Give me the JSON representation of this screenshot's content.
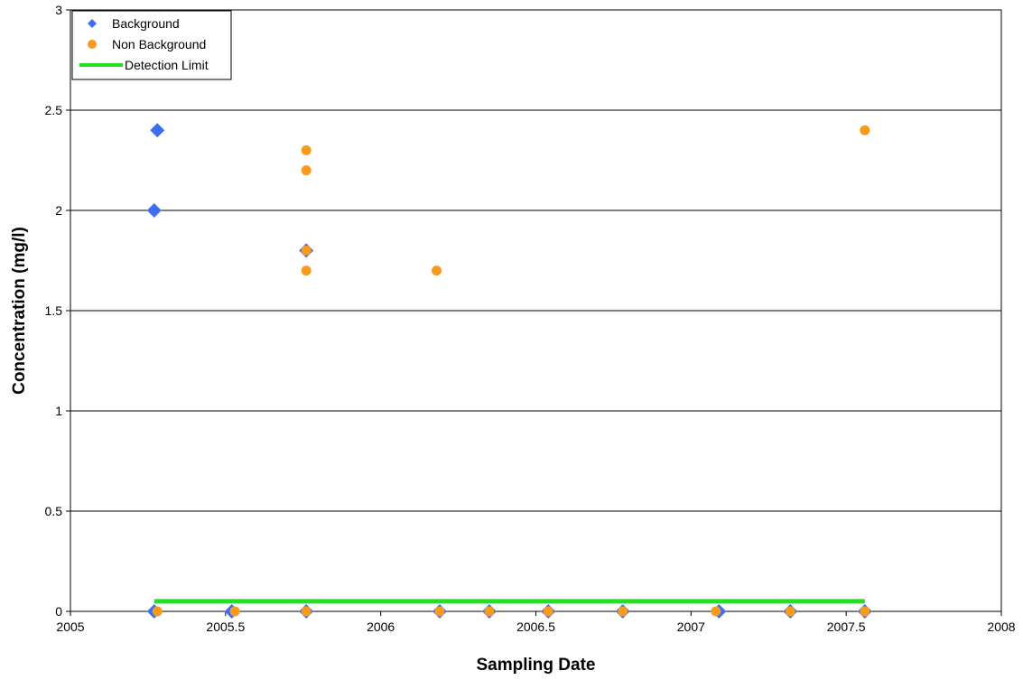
{
  "chart_data": {
    "type": "scatter",
    "xlabel": "Sampling Date",
    "ylabel": "Concentration (mg/l)",
    "xlim": [
      2005,
      2008
    ],
    "ylim": [
      0,
      3
    ],
    "x_ticks": [
      "2005",
      "2005.5",
      "2006",
      "2006.5",
      "2007",
      "2007.5",
      "2008"
    ],
    "y_ticks": [
      "0",
      "0.5",
      "1",
      "1.5",
      "2",
      "2.5",
      "3"
    ],
    "grid": "horizontal",
    "legend_position": "top-left",
    "series": [
      {
        "name": "Background",
        "marker": "diamond",
        "color": "#3f6ef0",
        "points": [
          {
            "x": 2005.28,
            "y": 2.4
          },
          {
            "x": 2005.27,
            "y": 2.0
          },
          {
            "x": 2005.76,
            "y": 1.8
          },
          {
            "x": 2005.27,
            "y": 0
          },
          {
            "x": 2005.52,
            "y": 0
          },
          {
            "x": 2005.76,
            "y": 0
          },
          {
            "x": 2006.19,
            "y": 0
          },
          {
            "x": 2006.35,
            "y": 0
          },
          {
            "x": 2006.54,
            "y": 0
          },
          {
            "x": 2006.78,
            "y": 0
          },
          {
            "x": 2007.09,
            "y": 0
          },
          {
            "x": 2007.32,
            "y": 0
          },
          {
            "x": 2007.56,
            "y": 0
          }
        ]
      },
      {
        "name": "Non Background",
        "marker": "circle",
        "color": "#f79a1e",
        "points": [
          {
            "x": 2005.76,
            "y": 2.3
          },
          {
            "x": 2005.76,
            "y": 2.2
          },
          {
            "x": 2005.76,
            "y": 1.8
          },
          {
            "x": 2005.76,
            "y": 1.7
          },
          {
            "x": 2006.18,
            "y": 1.7
          },
          {
            "x": 2007.56,
            "y": 2.4
          },
          {
            "x": 2005.28,
            "y": 0
          },
          {
            "x": 2005.53,
            "y": 0
          },
          {
            "x": 2005.76,
            "y": 0
          },
          {
            "x": 2006.19,
            "y": 0
          },
          {
            "x": 2006.35,
            "y": 0
          },
          {
            "x": 2006.54,
            "y": 0
          },
          {
            "x": 2006.78,
            "y": 0
          },
          {
            "x": 2007.08,
            "y": 0
          },
          {
            "x": 2007.32,
            "y": 0
          },
          {
            "x": 2007.56,
            "y": 0
          }
        ]
      },
      {
        "name": "Detection Limit",
        "marker": "line",
        "color": "#22e022",
        "points": [
          {
            "x": 2005.27,
            "y": 0.05
          },
          {
            "x": 2007.56,
            "y": 0.05
          }
        ]
      }
    ]
  }
}
